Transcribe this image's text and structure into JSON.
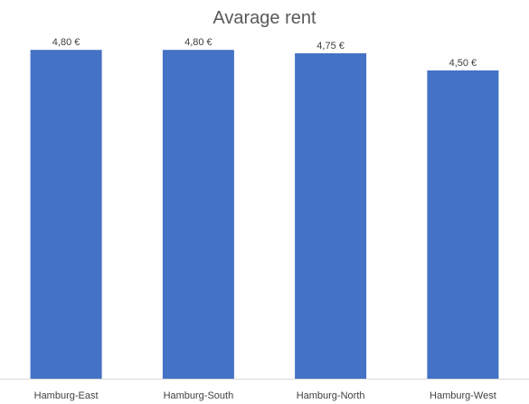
{
  "chart_data": {
    "type": "bar",
    "title": "Avarage rent",
    "categories": [
      "Hamburg-East",
      "Hamburg-South",
      "Hamburg-North",
      "Hamburg-West"
    ],
    "values": [
      4.8,
      4.8,
      4.75,
      4.5
    ],
    "value_labels": [
      "4,80 €",
      "4,80 €",
      "4,75 €",
      "4,50 €"
    ],
    "xlabel": "",
    "ylabel": "",
    "ylim": [
      0,
      5
    ],
    "grid": false,
    "legend": "none",
    "colors": {
      "bar": "#4472C4",
      "title": "#595959",
      "label": "#404040",
      "axis": "#D9D9D9",
      "background": "#FFFFFF"
    }
  }
}
